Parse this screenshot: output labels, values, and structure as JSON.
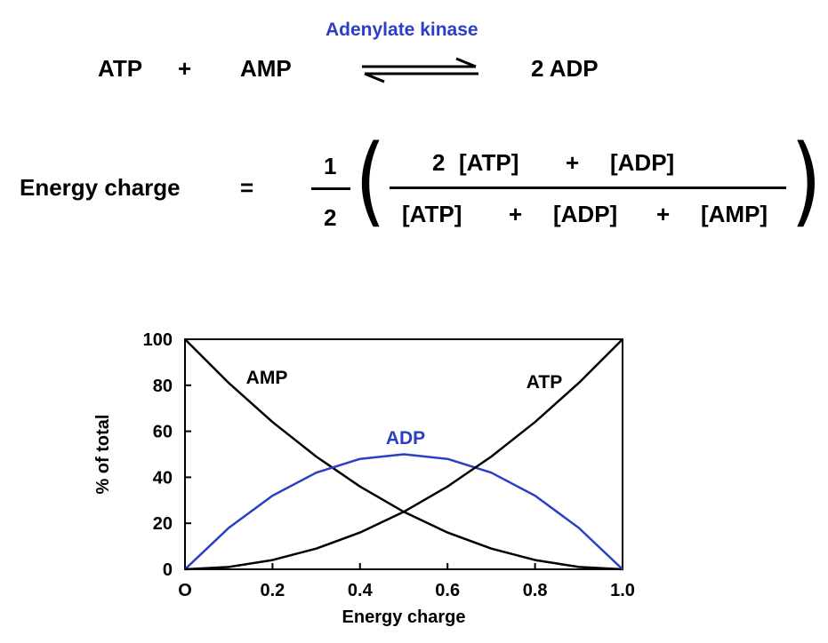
{
  "reaction": {
    "enzyme": "Adenylate kinase",
    "reactant1": "ATP",
    "plus": "+",
    "reactant2": "AMP",
    "product": "2 ADP"
  },
  "energy_charge_formula": {
    "lhs": "Energy charge",
    "equals": "=",
    "coef_num": "1",
    "coef_den": "2",
    "numerator": [
      "2",
      "[ATP]",
      "+",
      "[ADP]"
    ],
    "denominator": [
      "[ATP]",
      "+",
      "[ADP]",
      "+",
      "[AMP]"
    ],
    "open_paren": "(",
    "close_paren": ")"
  },
  "chart_data": {
    "type": "line",
    "xlabel": "Energy charge",
    "ylabel": "% of total",
    "xlim": [
      0,
      1
    ],
    "ylim": [
      0,
      100
    ],
    "x_ticks": [
      "O",
      "0.2",
      "0.4",
      "0.6",
      "0.8",
      "1.0"
    ],
    "y_ticks": [
      "0",
      "20",
      "40",
      "60",
      "80",
      "100"
    ],
    "grid": false,
    "x": [
      0,
      0.1,
      0.2,
      0.3,
      0.4,
      0.5,
      0.6,
      0.7,
      0.8,
      0.9,
      1.0
    ],
    "series": [
      {
        "name": "AMP",
        "color": "#000000",
        "values": [
          100,
          81,
          64,
          49,
          36,
          25,
          16,
          9,
          4,
          1,
          0
        ]
      },
      {
        "name": "ADP",
        "color": "#2a3fc4",
        "values": [
          0,
          18,
          32,
          42,
          48,
          50,
          48,
          42,
          32,
          18,
          0
        ]
      },
      {
        "name": "ATP",
        "color": "#000000",
        "values": [
          0,
          1,
          4,
          9,
          16,
          25,
          36,
          49,
          64,
          81,
          100
        ]
      }
    ]
  }
}
